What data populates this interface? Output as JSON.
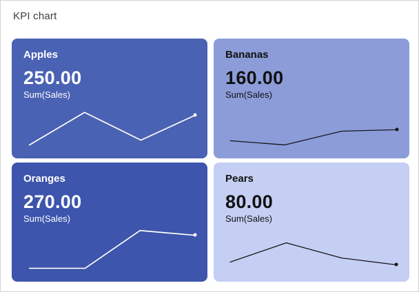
{
  "page": {
    "title": "KPI chart",
    "background": "#ffffff",
    "border_color": "#d2d2d2",
    "title_color": "#3d3d3d"
  },
  "cards": [
    {
      "name": "Apples",
      "value": "250.00",
      "measure": "Sum(Sales)",
      "background": "#4a62b3",
      "text_color": "#ffffff",
      "line_color": "#ffffff",
      "line_width": 1.7,
      "sparkline_points": [
        [
          9.1,
          89.0
        ],
        [
          37.2,
          61.8
        ],
        [
          66.0,
          85.0
        ],
        [
          93.7,
          64.2
        ]
      ]
    },
    {
      "name": "Bananas",
      "value": "160.00",
      "measure": "Sum(Sales)",
      "background": "#8c9cd9",
      "text_color": "#111111",
      "line_color": "#16161a",
      "line_width": 1.3,
      "sparkline_points": [
        [
          8.5,
          85.5
        ],
        [
          36.4,
          89.0
        ],
        [
          65.4,
          77.5
        ],
        [
          93.6,
          76.3
        ]
      ]
    },
    {
      "name": "Oranges",
      "value": "270.00",
      "measure": "Sum(Sales)",
      "background": "#3d55ac",
      "text_color": "#ffffff",
      "line_color": "#ffffff",
      "line_width": 1.7,
      "sparkline_points": [
        [
          9.1,
          88.5
        ],
        [
          37.5,
          88.5
        ],
        [
          65.6,
          56.9
        ],
        [
          93.7,
          60.9
        ]
      ]
    },
    {
      "name": "Pears",
      "value": "80.00",
      "measure": "Sum(Sales)",
      "background": "#c5cef3",
      "text_color": "#111111",
      "line_color": "#16161a",
      "line_width": 1.3,
      "sparkline_points": [
        [
          8.5,
          83.3
        ],
        [
          37.1,
          67.2
        ],
        [
          65.4,
          79.9
        ],
        [
          93.3,
          85.6
        ]
      ]
    }
  ],
  "chart_data": [
    {
      "type": "line",
      "title": "Apples",
      "kpi_value": 250.0,
      "label": "Sum(Sales)",
      "x": [
        1,
        2,
        3,
        4
      ],
      "y_relative": [
        11,
        38,
        15,
        36
      ],
      "note": "sparkline, no axes or tick labels; values estimated from line height"
    },
    {
      "type": "line",
      "title": "Bananas",
      "kpi_value": 160.0,
      "label": "Sum(Sales)",
      "x": [
        1,
        2,
        3,
        4
      ],
      "y_relative": [
        14,
        11,
        22,
        24
      ],
      "note": "sparkline, no axes or tick labels; values estimated from line height"
    },
    {
      "type": "line",
      "title": "Oranges",
      "kpi_value": 270.0,
      "label": "Sum(Sales)",
      "x": [
        1,
        2,
        3,
        4
      ],
      "y_relative": [
        11,
        11,
        43,
        39
      ],
      "note": "sparkline, no axes or tick labels; values estimated from line height"
    },
    {
      "type": "line",
      "title": "Pears",
      "kpi_value": 80.0,
      "label": "Sum(Sales)",
      "x": [
        1,
        2,
        3,
        4
      ],
      "y_relative": [
        17,
        33,
        20,
        14
      ],
      "note": "sparkline, no axes or tick labels; values estimated from line height"
    }
  ]
}
